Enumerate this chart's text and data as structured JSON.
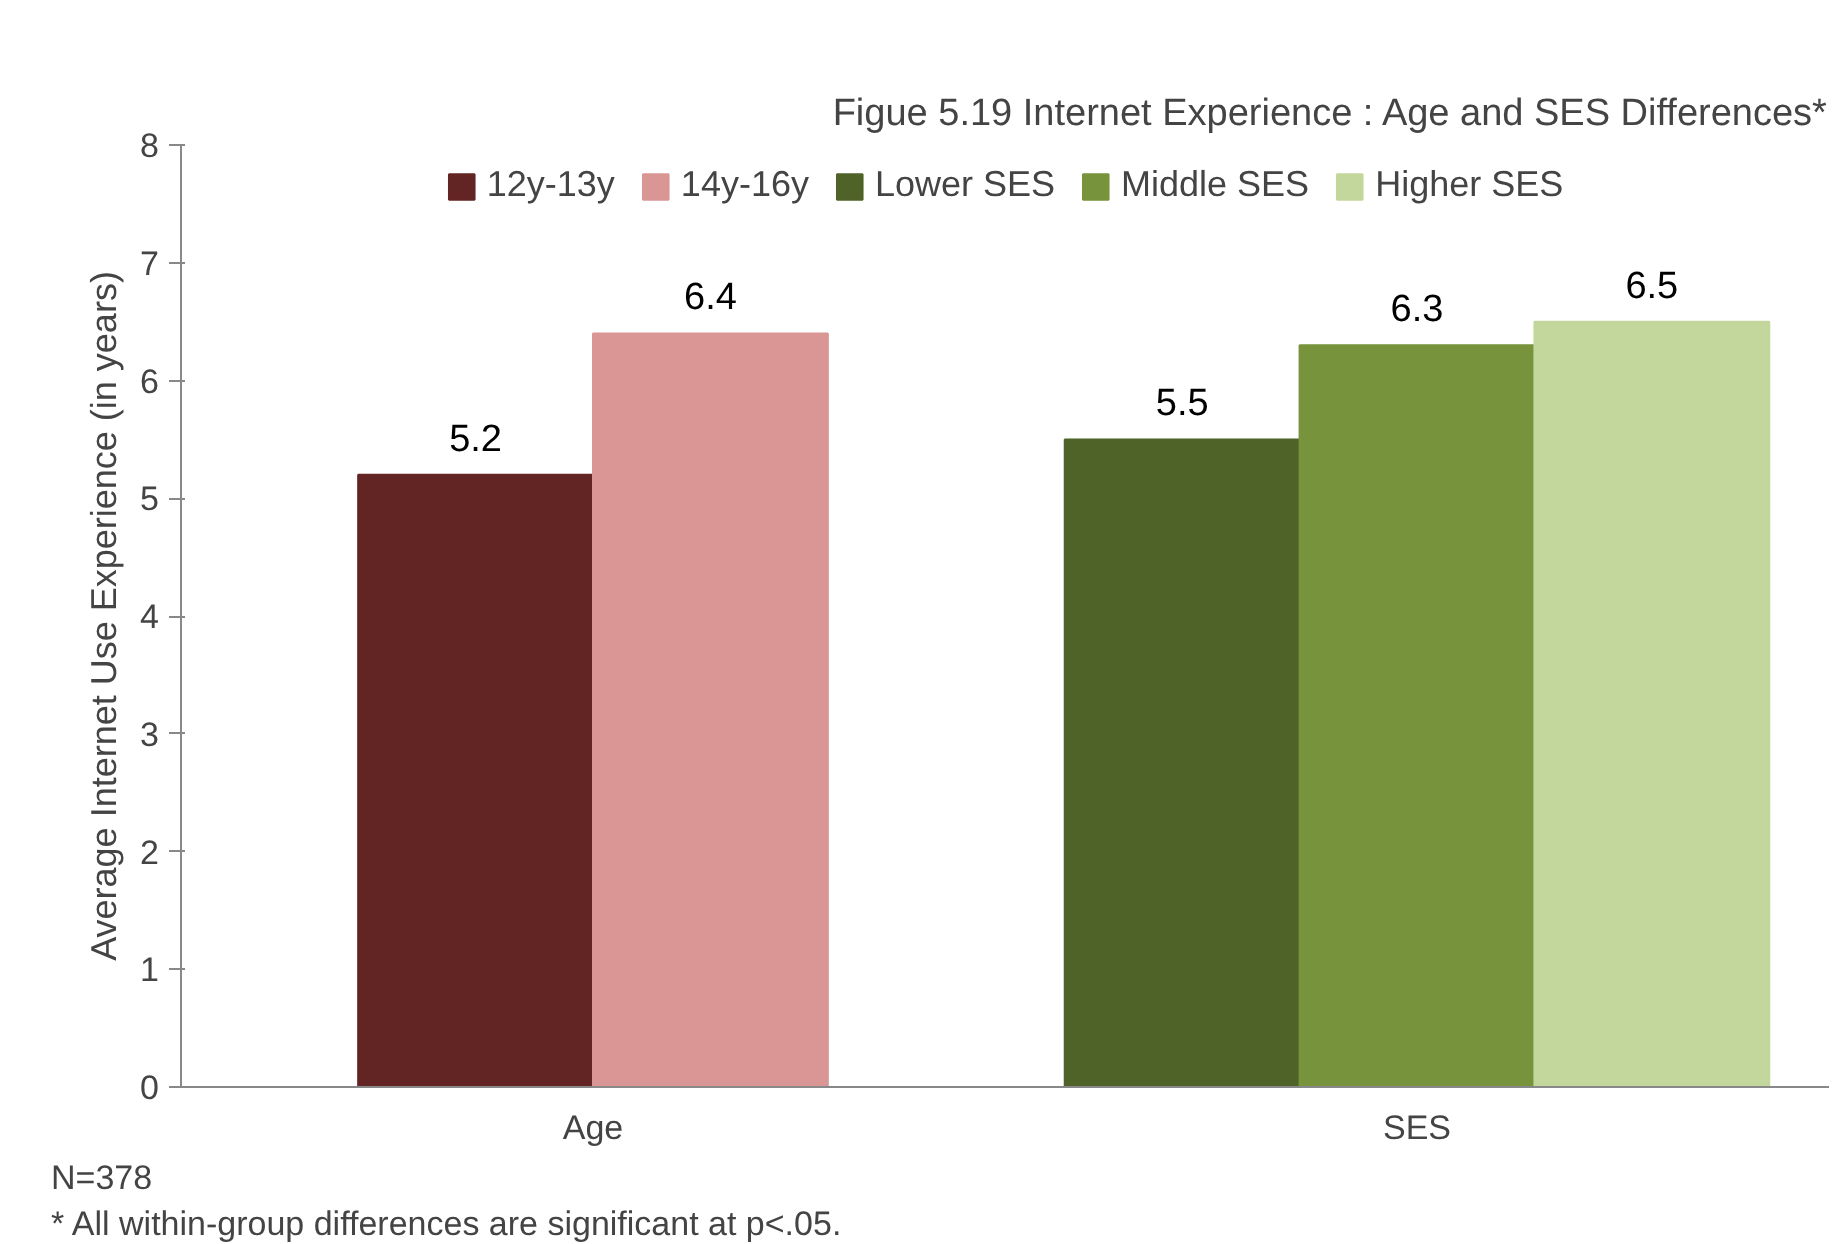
{
  "chart_data": {
    "type": "bar",
    "title": "Figue 5.19 Internet Experience : Age and SES Differences*",
    "ylabel": "Average Internet Use Experience (in years)",
    "categories": [
      "Age",
      "SES"
    ],
    "series": [
      {
        "name": "12y-13y",
        "color": "#632523",
        "values": [
          5.2,
          null
        ]
      },
      {
        "name": "14y-16y",
        "color": "#d99694",
        "values": [
          6.4,
          null
        ]
      },
      {
        "name": "Lower SES",
        "color": "#4f6228",
        "values": [
          null,
          5.5
        ]
      },
      {
        "name": "Middle SES",
        "color": "#77933c",
        "values": [
          null,
          6.3
        ]
      },
      {
        "name": "Higher SES",
        "color": "#c3d69b",
        "values": [
          null,
          6.5
        ]
      }
    ],
    "ylim": [
      0,
      8
    ],
    "yticks": [
      0,
      1,
      2,
      3,
      4,
      5,
      6,
      7,
      8
    ],
    "data_labels": true,
    "legend": "top",
    "grid": false,
    "annotations": [
      "N=378",
      "* All within-group differences are significant at p<.05."
    ]
  }
}
